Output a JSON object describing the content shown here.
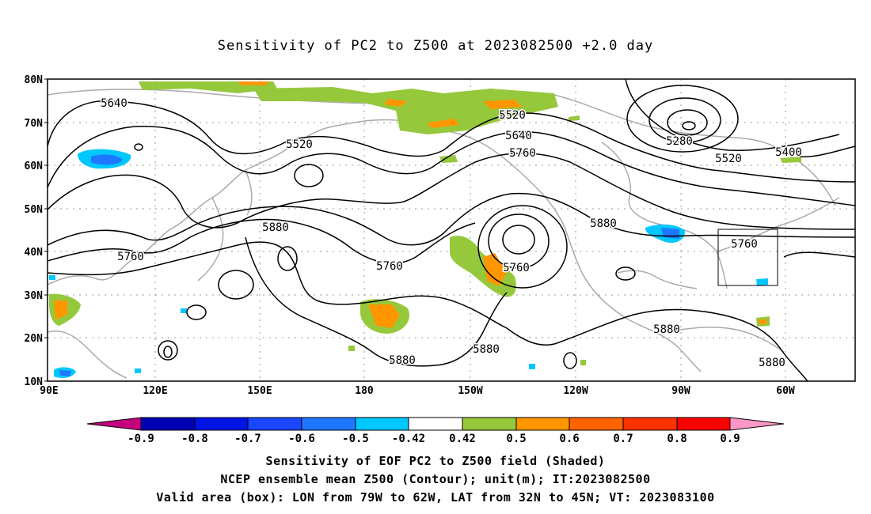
{
  "title": "Sensitivity of PC2 to Z500 at 2023082500 +2.0 day",
  "map": {
    "lon_ticks": [
      "90E",
      "120E",
      "150E",
      "180",
      "150W",
      "120W",
      "90W",
      "60W"
    ],
    "lat_ticks": [
      "80N",
      "70N",
      "60N",
      "50N",
      "40N",
      "30N",
      "20N",
      "10N"
    ],
    "valid_box": {
      "lon_from": "79W",
      "lon_to": "62W",
      "lat_from": "32N",
      "lat_to": "45N"
    },
    "contour_labels": [
      "5640",
      "5520",
      "5520",
      "5640",
      "5760",
      "5280",
      "5520",
      "5400",
      "5880",
      "5880",
      "5760",
      "5760",
      "5760",
      "5760",
      "5880",
      "5880",
      "5880",
      "5880"
    ],
    "colors": {
      "coast": "#aaaaaa",
      "contour": "#000000",
      "grid": "#999999"
    }
  },
  "colorbar": {
    "labels": [
      "-0.9",
      "-0.8",
      "-0.7",
      "-0.6",
      "-0.5",
      "-0.42",
      "0.42",
      "0.5",
      "0.6",
      "0.7",
      "0.8",
      "0.9"
    ],
    "colors": [
      "#c4007f",
      "#0000b4",
      "#0014e6",
      "#1a46ff",
      "#1e78ff",
      "#00c8ff",
      "#ffffff",
      "#96c83c",
      "#ff9600",
      "#ff6400",
      "#ff3200",
      "#ff0000",
      "#ff96c8"
    ]
  },
  "footer": {
    "line1": "Sensitivity of EOF PC2 to Z500 field (Shaded)",
    "line2": "NCEP ensemble mean Z500 (Contour); unit(m); IT:2023082500",
    "line3": "Valid area (box): LON from 79W to 62W, LAT from 32N to 45N; VT: 2023083100"
  }
}
